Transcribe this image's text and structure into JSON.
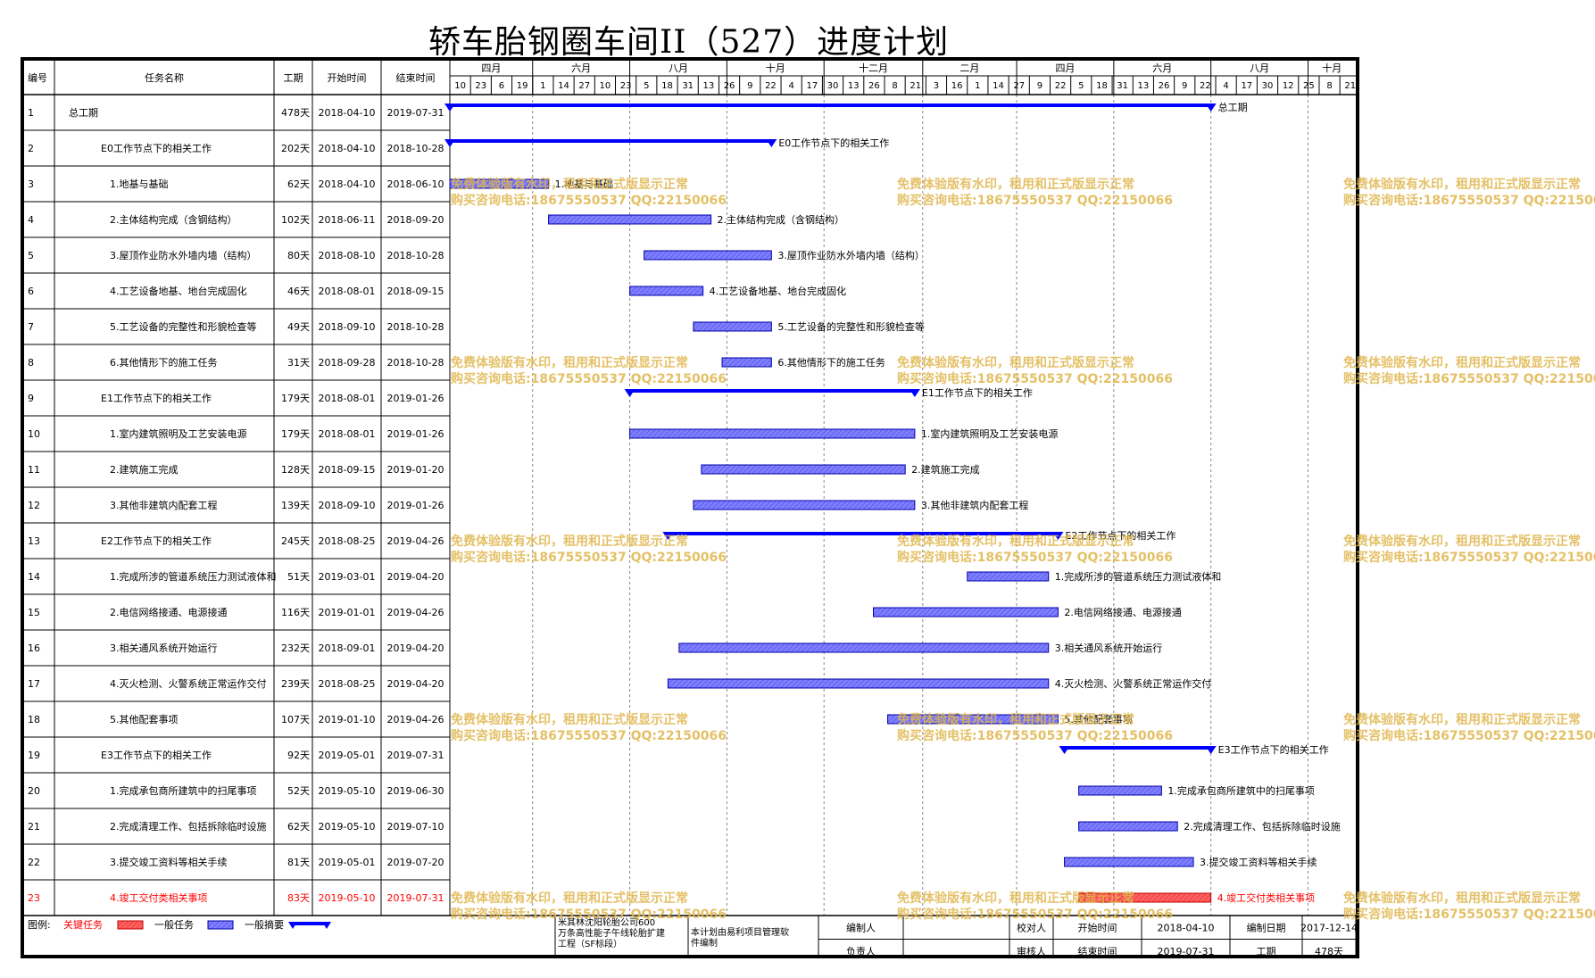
{
  "title": "轿车胎钢圈车间II（527）进度计划",
  "header": {
    "col_id": "编号",
    "col_name": "任务名称",
    "col_duration": "工期",
    "col_start": "开始时间",
    "col_end": "结束时间"
  },
  "timeline": {
    "months": [
      "四月",
      "六月",
      "八月",
      "十月",
      "十二月",
      "二月",
      "四月",
      "六月",
      "八月",
      "十月"
    ],
    "days": [
      "10",
      "23",
      "6",
      "19",
      "1",
      "14",
      "27",
      "10",
      "23",
      "5",
      "18",
      "31",
      "13",
      "26",
      "9",
      "22",
      "4",
      "17",
      "30",
      "13",
      "26",
      "8",
      "21",
      "3",
      "16",
      "1",
      "14",
      "27",
      "9",
      "22",
      "5",
      "18",
      "31",
      "13",
      "26",
      "9",
      "22",
      "4",
      "17",
      "30",
      "12",
      "25",
      "8",
      "21"
    ]
  },
  "chart_data": {
    "type": "gantt",
    "x_axis_start": "2018-04-10",
    "tasks": [
      {
        "id": "1",
        "name": "总工期",
        "duration": "478天",
        "start": "2018-04-10",
        "end": "2019-07-31",
        "kind": "summary",
        "level": 0,
        "bar_label": "总工期"
      },
      {
        "id": "2",
        "name": "E0工作节点下的相关工作",
        "duration": "202天",
        "start": "2018-04-10",
        "end": "2018-10-28",
        "kind": "summary",
        "level": 1,
        "bar_label": "E0工作节点下的相关工作"
      },
      {
        "id": "3",
        "name": "1.地基与基础",
        "duration": "62天",
        "start": "2018-04-10",
        "end": "2018-06-10",
        "kind": "normal",
        "level": 2,
        "bar_label": "1.地基与基础"
      },
      {
        "id": "4",
        "name": "2.主体结构完成（含钢结构）",
        "duration": "102天",
        "start": "2018-06-11",
        "end": "2018-09-20",
        "kind": "normal",
        "level": 2,
        "bar_label": "2.主体结构完成（含钢结构）"
      },
      {
        "id": "5",
        "name": "3.屋顶作业防水外墙内墙（结构）",
        "duration": "80天",
        "start": "2018-08-10",
        "end": "2018-10-28",
        "kind": "normal",
        "level": 2,
        "bar_label": "3.屋顶作业防水外墙内墙（结构）"
      },
      {
        "id": "6",
        "name": "4.工艺设备地基、地台完成固化",
        "duration": "46天",
        "start": "2018-08-01",
        "end": "2018-09-15",
        "kind": "normal",
        "level": 2,
        "bar_label": "4.工艺设备地基、地台完成固化"
      },
      {
        "id": "7",
        "name": "5.工艺设备的完整性和形貌检查等",
        "duration": "49天",
        "start": "2018-09-10",
        "end": "2018-10-28",
        "kind": "normal",
        "level": 2,
        "bar_label": "5.工艺设备的完整性和形貌检查等"
      },
      {
        "id": "8",
        "name": "6.其他情形下的施工任务",
        "duration": "31天",
        "start": "2018-09-28",
        "end": "2018-10-28",
        "kind": "normal",
        "level": 2,
        "bar_label": "6.其他情形下的施工任务"
      },
      {
        "id": "9",
        "name": "E1工作节点下的相关工作",
        "duration": "179天",
        "start": "2018-08-01",
        "end": "2019-01-26",
        "kind": "summary",
        "level": 1,
        "bar_label": "E1工作节点下的相关工作"
      },
      {
        "id": "10",
        "name": "1.室内建筑照明及工艺安装电源",
        "duration": "179天",
        "start": "2018-08-01",
        "end": "2019-01-26",
        "kind": "normal",
        "level": 2,
        "bar_label": "1.室内建筑照明及工艺安装电源"
      },
      {
        "id": "11",
        "name": "2.建筑施工完成",
        "duration": "128天",
        "start": "2018-09-15",
        "end": "2019-01-20",
        "kind": "normal",
        "level": 2,
        "bar_label": "2.建筑施工完成"
      },
      {
        "id": "12",
        "name": "3.其他非建筑内配套工程",
        "duration": "139天",
        "start": "2018-09-10",
        "end": "2019-01-26",
        "kind": "normal",
        "level": 2,
        "bar_label": "3.其他非建筑内配套工程"
      },
      {
        "id": "13",
        "name": "E2工作节点下的相关工作",
        "duration": "245天",
        "start": "2018-08-25",
        "end": "2019-04-26",
        "kind": "summary",
        "level": 1,
        "bar_label": "E2工作节点下的相关工作"
      },
      {
        "id": "14",
        "name": "1.完成所涉的管道系统压力测试液体和",
        "duration": "51天",
        "start": "2019-03-01",
        "end": "2019-04-20",
        "kind": "normal",
        "level": 2,
        "bar_label": "1.完成所涉的管道系统压力测试液体和"
      },
      {
        "id": "15",
        "name": "2.电信网络接通、电源接通",
        "duration": "116天",
        "start": "2019-01-01",
        "end": "2019-04-26",
        "kind": "normal",
        "level": 2,
        "bar_label": "2.电信网络接通、电源接通"
      },
      {
        "id": "16",
        "name": "3.相关通风系统开始运行",
        "duration": "232天",
        "start": "2018-09-01",
        "end": "2019-04-20",
        "kind": "normal",
        "level": 2,
        "bar_label": "3.相关通风系统开始运行"
      },
      {
        "id": "17",
        "name": "4.灭火检测、火警系统正常运作交付",
        "duration": "239天",
        "start": "2018-08-25",
        "end": "2019-04-20",
        "kind": "normal",
        "level": 2,
        "bar_label": "4.灭火检测、火警系统正常运作交付"
      },
      {
        "id": "18",
        "name": "5.其他配套事项",
        "duration": "107天",
        "start": "2019-01-10",
        "end": "2019-04-26",
        "kind": "normal",
        "level": 2,
        "bar_label": "5.其他配套事项"
      },
      {
        "id": "19",
        "name": "E3工作节点下的相关工作",
        "duration": "92天",
        "start": "2019-05-01",
        "end": "2019-07-31",
        "kind": "summary",
        "level": 1,
        "bar_label": "E3工作节点下的相关工作"
      },
      {
        "id": "20",
        "name": "1.完成承包商所建筑中的扫尾事项",
        "duration": "52天",
        "start": "2019-05-10",
        "end": "2019-06-30",
        "kind": "normal",
        "level": 2,
        "bar_label": "1.完成承包商所建筑中的扫尾事项"
      },
      {
        "id": "21",
        "name": "2.完成清理工作、包括拆除临时设施",
        "duration": "62天",
        "start": "2019-05-10",
        "end": "2019-07-10",
        "kind": "normal",
        "level": 2,
        "bar_label": "2.完成清理工作、包括拆除临时设施"
      },
      {
        "id": "22",
        "name": "3.提交竣工资料等相关手续",
        "duration": "81天",
        "start": "2019-05-01",
        "end": "2019-07-20",
        "kind": "normal",
        "level": 2,
        "bar_label": "3.提交竣工资料等相关手续"
      },
      {
        "id": "23",
        "name": "4.竣工交付类相关事项",
        "duration": "83天",
        "start": "2019-05-10",
        "end": "2019-07-31",
        "kind": "critical",
        "level": 2,
        "bar_label": "4.竣工交付类相关事项"
      }
    ]
  },
  "legend": {
    "title": "图例:",
    "critical": "关键任务",
    "normal": "一般任务",
    "summary": "一般摘要"
  },
  "footer": {
    "company": "米其林沈阳轮胎公司600万条高性能子午线轮胎扩建工程（SF标段）",
    "note": "本计划由易利项目管理软件编制",
    "compiler_label": "编制人",
    "owner_label": "负责人",
    "checker_label": "校对人",
    "reviewer_label": "审核人",
    "start_label": "开始时间",
    "start_value": "2018-04-10",
    "end_label": "结束时间",
    "end_value": "2019-07-31",
    "made_date_label": "编制日期",
    "made_date_value": "2017-12-14",
    "duration_label": "工期",
    "duration_value": "478天"
  },
  "watermark": {
    "line1": "免费体验版有水印，租用和正式版显示正常",
    "line2": "购买咨询电话:18675550537 QQ:22150066"
  },
  "colors": {
    "summary": "#0000ff",
    "normal_bar": "#7f7fff",
    "critical_bar": "#ff6060",
    "critical_text": "#ff0000",
    "watermark": "#e0b64c"
  }
}
